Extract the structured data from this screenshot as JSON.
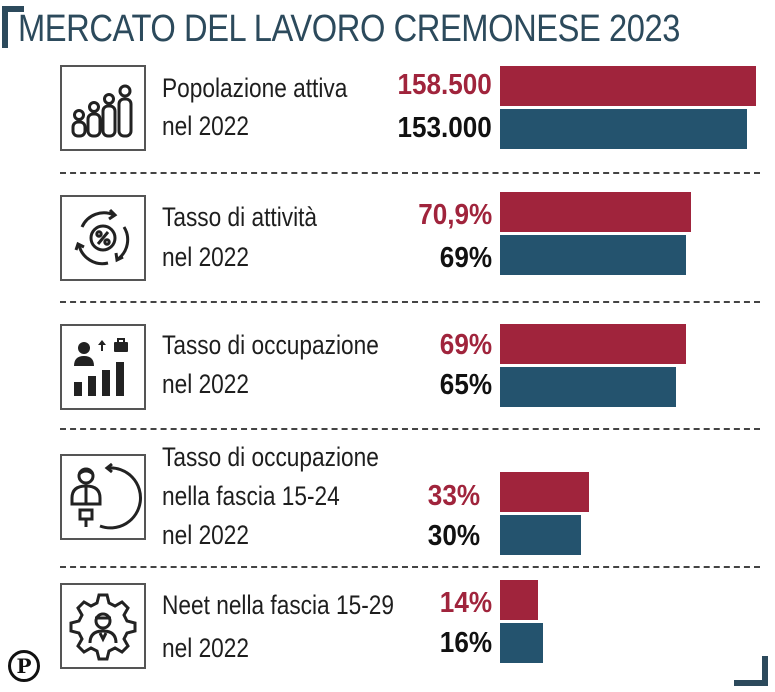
{
  "title": "MERCATO DEL LAVORO CREMONESE 2023",
  "colors": {
    "year_2023": "#a0243c",
    "year_2022": "#24536e",
    "title": "#2c4a5c"
  },
  "logo_letter": "P",
  "chart_data": {
    "type": "bar",
    "orientation": "horizontal",
    "categories": [
      "Popolazione attiva nel 2022",
      "Tasso di attività nel 2022",
      "Tasso di occupazione nel 2022",
      "Tasso di occupazione nella fascia 15-24 nel 2022",
      "Neet nella fascia 15-29 nel 2022"
    ],
    "rows": [
      {
        "label_lines": [
          "Popolazione attiva",
          "nel 2022"
        ],
        "icon": "population-icon",
        "value_2023": 158500,
        "value_2022": 153000,
        "label_2023": "158.500",
        "label_2022": "153.000",
        "max": 158500
      },
      {
        "label_lines": [
          "Tasso di attività",
          "nel 2022"
        ],
        "icon": "percent-cycle-icon",
        "value_2023": 70.9,
        "value_2022": 69,
        "label_2023": "70,9%",
        "label_2022": "69%",
        "max": 100
      },
      {
        "label_lines": [
          "Tasso di occupazione",
          "nel 2022"
        ],
        "icon": "employment-growth-icon",
        "value_2023": 69,
        "value_2022": 65,
        "label_2023": "69%",
        "label_2022": "65%",
        "max": 100
      },
      {
        "label_lines": [
          "Tasso di occupazione",
          "nella fascia 15-24",
          " nel 2022"
        ],
        "icon": "young-worker-icon",
        "value_2023": 33,
        "value_2022": 30,
        "label_2023": "33%",
        "label_2022": "30%",
        "max": 100
      },
      {
        "label_lines": [
          "Neet nella fascia 15-29",
          "nel 2022"
        ],
        "icon": "gear-person-icon",
        "value_2023": 14,
        "value_2022": 16,
        "label_2023": "14%",
        "label_2022": "16%",
        "max": 100
      }
    ]
  }
}
